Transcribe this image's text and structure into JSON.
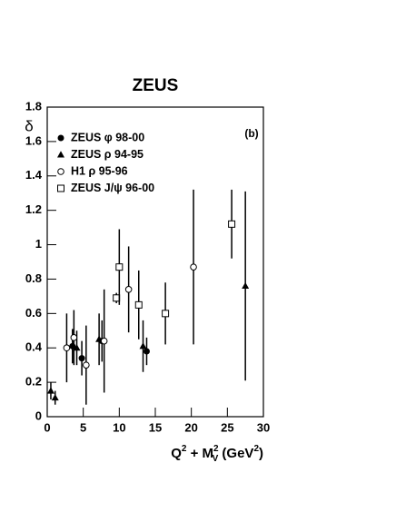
{
  "chart_data": {
    "type": "scatter",
    "title": "ZEUS",
    "ylabel": "δ",
    "xlabel": [
      {
        "text": "Q"
      },
      {
        "text": "2",
        "sup": true
      },
      {
        "text": " + M"
      },
      {
        "text": "2",
        "sup": true
      },
      {
        "text": "V",
        "sub": true
      },
      {
        "text": " (GeV"
      },
      {
        "text": "2",
        "sup": true
      },
      {
        "text": ")"
      }
    ],
    "annotation": "(b)",
    "xlim": [
      0,
      30
    ],
    "ylim": [
      0,
      1.8
    ],
    "xticks": [
      0,
      5,
      10,
      15,
      20,
      25,
      30
    ],
    "yticks": [
      0,
      0.2,
      0.4,
      0.6,
      0.8,
      1,
      1.2,
      1.4,
      1.6,
      1.8
    ],
    "legend": "upper left",
    "series": [
      {
        "name": "ZEUS φ 98-00",
        "marker": "filled-circle",
        "color": "#000000",
        "x": [
          3.5,
          4.8,
          7.6,
          13.8
        ],
        "values": [
          0.41,
          0.34,
          0.44,
          0.38
        ],
        "errors": [
          0.1,
          0.1,
          0.12,
          0.08
        ]
      },
      {
        "name": "ZEUS ρ 94-95",
        "marker": "filled-triangle",
        "color": "#000000",
        "x": [
          0.5,
          1.1,
          4.1,
          7.2,
          13.3,
          27.5
        ],
        "values": [
          0.15,
          0.11,
          0.4,
          0.45,
          0.41,
          0.76
        ],
        "errors": [
          0.05,
          0.04,
          0.1,
          0.15,
          0.15,
          0.55
        ]
      },
      {
        "name": "H1 ρ 95-96",
        "marker": "open-circle",
        "color": "#000000",
        "x": [
          2.7,
          3.7,
          5.4,
          7.9,
          11.3,
          20.3
        ],
        "values": [
          0.4,
          0.46,
          0.3,
          0.44,
          0.74,
          0.87
        ],
        "errors": [
          0.2,
          0.16,
          0.23,
          0.3,
          0.25,
          0.45
        ]
      },
      {
        "name": "ZEUS J/ψ 96-00",
        "marker": "open-square",
        "color": "#000000",
        "x": [
          9.6,
          10,
          12.7,
          16.4,
          25.6
        ],
        "values": [
          0.69,
          0.87,
          0.65,
          0.6,
          1.12
        ],
        "errors": [
          0.03,
          0.22,
          0.2,
          0.18,
          0.2
        ]
      }
    ]
  }
}
